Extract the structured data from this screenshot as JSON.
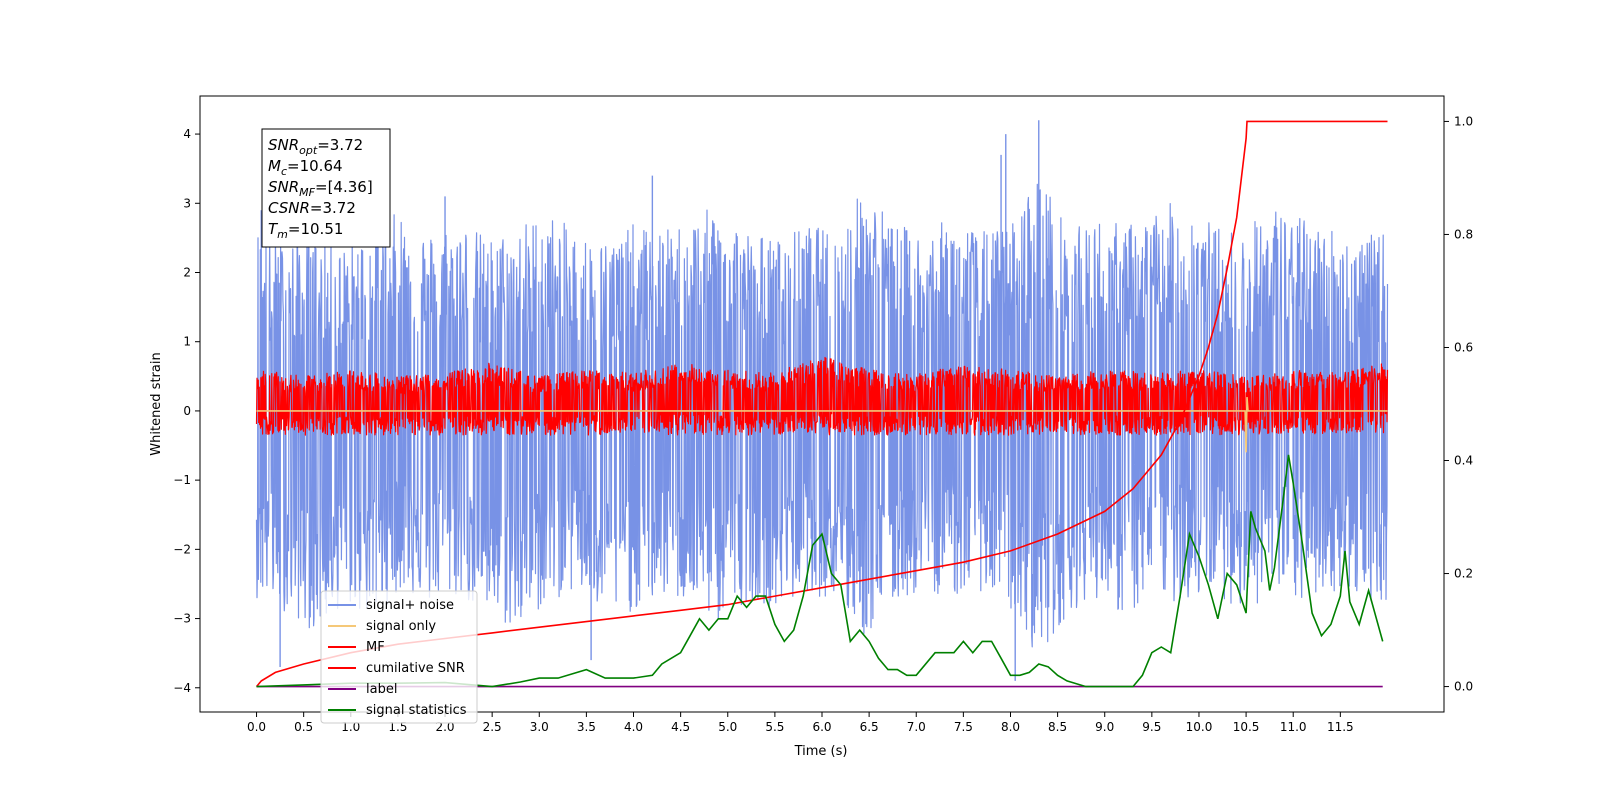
{
  "chart_data": {
    "type": "line",
    "xlabel": "Time (s)",
    "ylabel": "Whitened strain",
    "xlim": [
      -0.6,
      12.6
    ],
    "ylim": [
      -4.35,
      4.55
    ],
    "y2lim": [
      -0.045,
      1.045
    ],
    "x_ticks": [
      "0.0",
      "0.5",
      "1.0",
      "1.5",
      "2.0",
      "2.5",
      "3.0",
      "3.5",
      "4.0",
      "4.5",
      "5.0",
      "5.5",
      "6.0",
      "6.5",
      "7.0",
      "7.5",
      "8.0",
      "8.5",
      "9.0",
      "9.5",
      "10.0",
      "10.5",
      "11.0",
      "11.5"
    ],
    "y_ticks": [
      "4",
      "3",
      "2",
      "1",
      "0",
      "−1",
      "−2",
      "−3",
      "−4"
    ],
    "y2_ticks": [
      "1.0",
      "0.8",
      "0.6",
      "0.4",
      "0.2",
      "0.0"
    ],
    "grid": false,
    "legend_position": "lower-left",
    "annotation": {
      "lines": [
        {
          "name": "SNR",
          "sub": "opt",
          "value": "=3.72"
        },
        {
          "name": "M",
          "sub": "c",
          "value": "=10.64"
        },
        {
          "name": "SNR",
          "sub": "MF",
          "value": "=[4.36]"
        },
        {
          "name": "CSNR",
          "sub": "",
          "value": "=3.72"
        },
        {
          "name": "T",
          "sub": "m",
          "value": "=10.51"
        }
      ]
    },
    "legend": [
      {
        "name": "signal+ noise",
        "color": "#7892e6"
      },
      {
        "name": "signal only",
        "color": "#f5c878"
      },
      {
        "name": "MF",
        "color": "#ff0000"
      },
      {
        "name": "cumilative SNR",
        "color": "#ff0000"
      },
      {
        "name": "label",
        "color": "#800080"
      },
      {
        "name": "signal statistics",
        "color": "#008000"
      }
    ],
    "series": [
      {
        "name": "signal+ noise",
        "axis": "left",
        "color": "#7892e6",
        "x_range": [
          0.0,
          12.0
        ],
        "envelope_upper": [
          2.7,
          2.5,
          2.6,
          2.4,
          2.7,
          2.9,
          2.6,
          2.8,
          2.5,
          2.7,
          2.9,
          2.6,
          2.5,
          2.7,
          2.6,
          2.8,
          3.0,
          2.6,
          2.5,
          2.7,
          2.6,
          3.3,
          2.7,
          2.6,
          2.8,
          2.6,
          2.7,
          3.5,
          2.6,
          2.8,
          2.7,
          2.9,
          3.1,
          2.7,
          2.6,
          3.0,
          2.8,
          2.7,
          2.5,
          2.6
        ],
        "envelope_lower": [
          -2.7,
          -2.9,
          -3.2,
          -2.8,
          -3.0,
          -2.6,
          -2.8,
          -2.7,
          -3.0,
          -3.2,
          -2.8,
          -2.6,
          -3.0,
          -2.9,
          -2.7,
          -2.8,
          -3.1,
          -2.7,
          -2.9,
          -2.6,
          -2.8,
          -3.3,
          -2.8,
          -2.6,
          -2.7,
          -2.6,
          -2.9,
          -3.6,
          -2.9,
          -2.7,
          -3.0,
          -2.7,
          -2.8,
          -2.6,
          -2.9,
          -2.7,
          -2.8,
          -2.6,
          -2.7,
          -2.8
        ],
        "spikes": [
          {
            "x": 0.05,
            "y": 2.9
          },
          {
            "x": 0.25,
            "y": -3.7
          },
          {
            "x": 2.0,
            "y": 3.1
          },
          {
            "x": 3.55,
            "y": -3.6
          },
          {
            "x": 4.2,
            "y": 3.4
          },
          {
            "x": 7.9,
            "y": 3.7
          },
          {
            "x": 7.95,
            "y": 4.0
          },
          {
            "x": 8.05,
            "y": -3.9
          },
          {
            "x": 8.3,
            "y": 4.2
          }
        ]
      },
      {
        "name": "MF",
        "axis": "left",
        "color": "#ff0000",
        "x_range": [
          0.0,
          12.0
        ],
        "envelope_upper": [
          0.6,
          0.5,
          0.6,
          0.5,
          0.55,
          0.7,
          0.5,
          0.6,
          0.55,
          0.7,
          0.6,
          0.55,
          0.8,
          0.6,
          0.55,
          0.65,
          0.6,
          0.5,
          0.6,
          0.55,
          0.6,
          0.5,
          0.6,
          0.55,
          0.7
        ],
        "envelope_lower": [
          -0.35,
          -0.35,
          -0.35,
          -0.35,
          -0.35,
          -0.35,
          -0.35,
          -0.35,
          -0.35,
          -0.35,
          -0.35,
          -0.35,
          -0.35,
          -0.35,
          -0.35,
          -0.35,
          -0.35,
          -0.35,
          -0.35,
          -0.35,
          -0.35,
          -0.35,
          -0.35,
          -0.35,
          -0.35
        ]
      },
      {
        "name": "signal only",
        "axis": "left",
        "color": "#f5c878",
        "x": [
          0.0,
          10.49,
          10.5,
          10.51,
          10.52,
          12.0
        ],
        "y": [
          0.0,
          0.0,
          -0.6,
          0.2,
          0.0,
          0.0
        ]
      },
      {
        "name": "cumilative SNR",
        "axis": "right",
        "color": "#ff0000",
        "x": [
          0.0,
          0.05,
          0.2,
          0.5,
          1.0,
          1.5,
          2.0,
          2.5,
          3.0,
          3.5,
          4.0,
          4.5,
          5.0,
          5.5,
          6.0,
          6.5,
          7.0,
          7.5,
          8.0,
          8.5,
          9.0,
          9.3,
          9.6,
          9.8,
          10.0,
          10.1,
          10.2,
          10.3,
          10.4,
          10.45,
          10.5,
          10.51,
          12.0
        ],
        "y": [
          0.0,
          0.01,
          0.025,
          0.04,
          0.06,
          0.075,
          0.085,
          0.095,
          0.105,
          0.115,
          0.125,
          0.135,
          0.145,
          0.16,
          0.175,
          0.19,
          0.205,
          0.22,
          0.24,
          0.27,
          0.31,
          0.35,
          0.41,
          0.47,
          0.55,
          0.6,
          0.66,
          0.74,
          0.83,
          0.9,
          0.97,
          1.0,
          1.0
        ]
      },
      {
        "name": "label",
        "axis": "right",
        "color": "#800080",
        "x": [
          0.0,
          11.95
        ],
        "y": [
          0.0,
          0.0
        ]
      },
      {
        "name": "signal statistics",
        "axis": "right",
        "color": "#008000",
        "x": [
          0.0,
          0.5,
          1.0,
          1.5,
          2.0,
          2.5,
          2.8,
          3.0,
          3.2,
          3.5,
          3.7,
          4.0,
          4.2,
          4.3,
          4.5,
          4.6,
          4.7,
          4.8,
          4.9,
          5.0,
          5.1,
          5.2,
          5.3,
          5.4,
          5.5,
          5.6,
          5.7,
          5.8,
          5.9,
          6.0,
          6.1,
          6.2,
          6.3,
          6.4,
          6.5,
          6.6,
          6.7,
          6.8,
          6.9,
          7.0,
          7.2,
          7.4,
          7.5,
          7.6,
          7.7,
          7.8,
          7.9,
          8.0,
          8.1,
          8.2,
          8.3,
          8.4,
          8.5,
          8.6,
          8.8,
          9.0,
          9.3,
          9.4,
          9.5,
          9.6,
          9.7,
          9.8,
          9.9,
          10.0,
          10.1,
          10.2,
          10.3,
          10.4,
          10.5,
          10.55,
          10.6,
          10.7,
          10.75,
          10.8,
          10.9,
          10.95,
          11.0,
          11.1,
          11.2,
          11.3,
          11.4,
          11.5,
          11.55,
          11.6,
          11.7,
          11.8,
          11.95
        ],
        "y": [
          0.0,
          0.003,
          0.006,
          0.006,
          0.007,
          0.0,
          0.008,
          0.015,
          0.015,
          0.03,
          0.015,
          0.015,
          0.02,
          0.04,
          0.06,
          0.09,
          0.12,
          0.1,
          0.12,
          0.12,
          0.16,
          0.14,
          0.16,
          0.16,
          0.11,
          0.08,
          0.1,
          0.16,
          0.25,
          0.27,
          0.2,
          0.18,
          0.08,
          0.1,
          0.08,
          0.05,
          0.03,
          0.03,
          0.02,
          0.02,
          0.06,
          0.06,
          0.08,
          0.06,
          0.08,
          0.08,
          0.05,
          0.02,
          0.02,
          0.025,
          0.04,
          0.035,
          0.02,
          0.01,
          0.0,
          0.0,
          0.0,
          0.02,
          0.06,
          0.07,
          0.06,
          0.16,
          0.27,
          0.23,
          0.18,
          0.12,
          0.2,
          0.18,
          0.13,
          0.31,
          0.28,
          0.24,
          0.17,
          0.21,
          0.34,
          0.41,
          0.36,
          0.25,
          0.13,
          0.09,
          0.11,
          0.16,
          0.24,
          0.15,
          0.11,
          0.17,
          0.08
        ]
      }
    ]
  }
}
